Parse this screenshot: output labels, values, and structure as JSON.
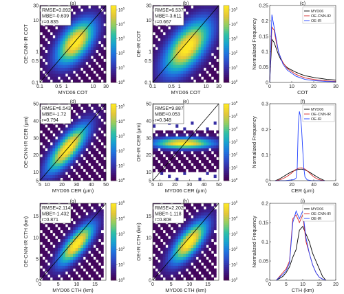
{
  "colormap": [
    "#440154",
    "#3b1f8e",
    "#2f47c4",
    "#1f74e0",
    "#16a3d0",
    "#2fc0a6",
    "#8fce63",
    "#e2c63a",
    "#fde725"
  ],
  "colors": {
    "myd06": "#000000",
    "oe_cnn_ir": "#d62728",
    "oe_ir": "#1f3fff"
  },
  "chart_data": [
    {
      "type": "heatmap",
      "panel_label": "(a)",
      "xlabel": "MYD06 COT",
      "ylabel": "OE-CNN-IR COT",
      "log_axes": true,
      "xlim": [
        0.1,
        30
      ],
      "ylim": [
        0.1,
        30
      ],
      "xticks": [
        0.1,
        0.5,
        1,
        10,
        30
      ],
      "xtick_labels": [
        "0.1",
        "0.5",
        "1",
        "10",
        "30"
      ],
      "yticks": [
        0.1,
        0.5,
        1,
        10,
        30
      ],
      "ytick_labels": [
        "0.1",
        "0.5",
        "1",
        "10",
        "30"
      ],
      "stats": [
        "RMSE=3.892",
        "MBE=-0.639",
        "r=0.835"
      ],
      "colorbar": {
        "ticks": [
          "10^0",
          "10^1",
          "10^2",
          "10^3",
          "10^4",
          "10^5"
        ],
        "max_exp": 5.3
      },
      "one_to_one_line": true,
      "distribution": {
        "peak": [
          2.2,
          2.0
        ],
        "spread": 0.95,
        "along": 1.8,
        "max_exp": 5.3,
        "fill_min": 0.12
      }
    },
    {
      "type": "heatmap",
      "panel_label": "(b)",
      "xlabel": "MYD06 COT",
      "ylabel": "OE-IR COT",
      "log_axes": true,
      "xlim": [
        0.1,
        30
      ],
      "ylim": [
        0.1,
        30
      ],
      "xticks": [
        0.1,
        0.5,
        1,
        10,
        30
      ],
      "xtick_labels": [
        "0.1",
        "0.5",
        "1",
        "10",
        "30"
      ],
      "yticks": [
        0.1,
        0.5,
        1,
        10,
        30
      ],
      "ytick_labels": [
        "0.1",
        "0.5",
        "1",
        "10",
        "30"
      ],
      "stats": [
        "RMSE=6.537",
        "MBE=-3.611",
        "r=0.667"
      ],
      "colorbar": {
        "ticks": [
          "10^0",
          "10^1",
          "10^2",
          "10^3",
          "10^4",
          "10^5"
        ],
        "max_exp": 5.3
      },
      "one_to_one_line": true,
      "distribution": {
        "peak": [
          2.0,
          1.4
        ],
        "spread": 1.1,
        "along": 2.2,
        "max_exp": 5.3,
        "fill_min": 0.1
      }
    },
    {
      "type": "line",
      "panel_label": "(c)",
      "xlabel": "COT",
      "ylabel": "Normalized Frequency",
      "xlim": [
        0,
        30
      ],
      "ylim": [
        0,
        0.25
      ],
      "xticks": [
        0,
        10,
        20,
        30
      ],
      "yticks": [
        0,
        0.05,
        0.1,
        0.15,
        0.2,
        0.25
      ],
      "ytick_labels": [
        "0",
        "0.05",
        "0.1",
        "0.15",
        "0.2",
        "0.25"
      ],
      "legend_position": "top-right",
      "series": [
        {
          "name": "MYD06",
          "color_key": "myd06",
          "x": [
            0,
            1,
            2,
            3,
            4,
            5,
            6,
            7,
            8,
            10,
            12,
            14,
            16,
            18,
            20,
            22,
            24,
            26,
            28,
            30
          ],
          "values": [
            0.0,
            0.14,
            0.13,
            0.11,
            0.09,
            0.075,
            0.065,
            0.055,
            0.048,
            0.04,
            0.033,
            0.027,
            0.022,
            0.019,
            0.016,
            0.014,
            0.012,
            0.01,
            0.009,
            0.008
          ]
        },
        {
          "name": "OE-CNN-IR",
          "color_key": "oe_cnn_ir",
          "x": [
            0,
            1,
            2,
            3,
            4,
            5,
            6,
            7,
            8,
            10,
            12,
            14,
            16,
            18,
            20,
            22,
            24,
            26,
            28,
            30
          ],
          "values": [
            0.0,
            0.18,
            0.17,
            0.13,
            0.1,
            0.08,
            0.065,
            0.055,
            0.045,
            0.035,
            0.026,
            0.02,
            0.015,
            0.012,
            0.01,
            0.008,
            0.006,
            0.005,
            0.004,
            0.004
          ]
        },
        {
          "name": "OE-IR",
          "color_key": "oe_ir",
          "x": [
            0,
            1,
            2,
            3,
            4,
            5,
            6,
            7,
            8,
            10,
            12,
            14,
            16,
            18,
            20,
            22,
            24,
            26,
            28,
            30
          ],
          "values": [
            0.0,
            0.22,
            0.18,
            0.14,
            0.1,
            0.08,
            0.06,
            0.05,
            0.04,
            0.03,
            0.02,
            0.015,
            0.01,
            0.008,
            0.006,
            0.005,
            0.004,
            0.003,
            0.003,
            0.002
          ]
        }
      ]
    },
    {
      "type": "heatmap",
      "panel_label": "(d)",
      "xlabel": "MYD06 CER (μm)",
      "ylabel": "OE-CNN-IR CER (μm)",
      "log_axes": false,
      "xlim": [
        5,
        50
      ],
      "ylim": [
        5,
        50
      ],
      "xticks": [
        5,
        10,
        20,
        30,
        40,
        50
      ],
      "yticks": [
        5,
        10,
        20,
        30,
        40,
        50
      ],
      "stats": [
        "RMSE=6.543",
        "MBE=-1.72",
        "r=0.794"
      ],
      "colorbar": {
        "ticks": [
          "10^0",
          "10^1",
          "10^2",
          "10^3",
          "10^4",
          "10^5"
        ],
        "max_exp": 5.2
      },
      "one_to_one_line": true,
      "distribution": {
        "peak": [
          24,
          24
        ],
        "spread": 4.5,
        "along": 13,
        "max_exp": 5.2,
        "fill_min": 0.12
      }
    },
    {
      "type": "heatmap",
      "panel_label": "(e)",
      "xlabel": "MYD06 CER (μm)",
      "ylabel": "OE-IR CER (μm)",
      "log_axes": false,
      "xlim": [
        5,
        50
      ],
      "ylim": [
        5,
        50
      ],
      "xticks": [
        5,
        10,
        20,
        30,
        40,
        50
      ],
      "yticks": [
        5,
        10,
        20,
        30,
        40,
        50
      ],
      "stats": [
        "RMSE=9.887",
        "MBE=0.053",
        "r=0.348"
      ],
      "colorbar": {
        "ticks": [
          "10^0",
          "10^1",
          "10^2",
          "10^3",
          "10^4",
          "10^5",
          "10^6"
        ],
        "max_exp": 6.0
      },
      "one_to_one_line": true,
      "distribution": {
        "peak": [
          26,
          27
        ],
        "spread": 2.2,
        "along": 14,
        "max_exp": 6.0,
        "fill_min": 0.18,
        "horizontal": true,
        "ymin_band": 10,
        "ymax_band": 35
      }
    },
    {
      "type": "line",
      "panel_label": "(f)",
      "xlabel": "CER (μm)",
      "ylabel": "Normalized Frequency",
      "xlim": [
        0,
        60
      ],
      "ylim": [
        0,
        0.3
      ],
      "xticks": [
        0,
        20,
        40,
        60
      ],
      "yticks": [
        0,
        0.1,
        0.2,
        0.3
      ],
      "ytick_labels": [
        "0",
        "0.1",
        "0.2",
        "0.3"
      ],
      "legend_position": "top-right",
      "series": [
        {
          "name": "MYD06",
          "color_key": "myd06",
          "x": [
            5,
            8,
            11,
            14,
            17,
            20,
            23,
            26,
            29,
            32,
            35,
            38,
            41,
            44,
            47,
            50
          ],
          "values": [
            0.0,
            0.005,
            0.012,
            0.02,
            0.028,
            0.035,
            0.04,
            0.044,
            0.045,
            0.042,
            0.036,
            0.028,
            0.02,
            0.012,
            0.006,
            0.0
          ]
        },
        {
          "name": "OE-CNN-IR",
          "color_key": "oe_cnn_ir",
          "x": [
            5,
            8,
            11,
            14,
            17,
            20,
            23,
            26,
            29,
            32,
            35,
            38,
            41,
            44,
            47,
            50
          ],
          "values": [
            0.0,
            0.002,
            0.006,
            0.012,
            0.02,
            0.03,
            0.042,
            0.048,
            0.05,
            0.045,
            0.035,
            0.022,
            0.012,
            0.005,
            0.002,
            0.0
          ]
        },
        {
          "name": "OE-IR",
          "color_key": "oe_ir",
          "x": [
            5,
            14,
            18,
            22,
            24,
            25,
            26,
            27,
            28,
            29,
            30,
            31,
            32,
            34,
            38,
            50
          ],
          "values": [
            0.0,
            0.0,
            0.002,
            0.004,
            0.01,
            0.05,
            0.22,
            0.27,
            0.25,
            0.2,
            0.12,
            0.05,
            0.015,
            0.003,
            0.0,
            0.0
          ]
        }
      ]
    },
    {
      "type": "heatmap",
      "panel_label": "(g)",
      "xlabel": "MYD06 CTH (km)",
      "ylabel": "OE-CNN-IR CTH (km)",
      "log_axes": false,
      "xlim": [
        0,
        18
      ],
      "ylim": [
        0,
        18
      ],
      "xticks": [
        0,
        5,
        10,
        15
      ],
      "yticks": [
        0,
        5,
        10,
        15
      ],
      "stats": [
        "RMSE=2.114",
        "MBE=-1.432",
        "r=0.871"
      ],
      "colorbar": {
        "ticks": [
          "10^0",
          "10^1",
          "10^2",
          "10^3",
          "10^4",
          "10^5"
        ],
        "max_exp": 5.0
      },
      "one_to_one_line": true,
      "distribution": {
        "peak": [
          10,
          8.5
        ],
        "spread": 1.6,
        "along": 4.5,
        "max_exp": 5.0,
        "fill_min": 0.1,
        "xmax_cut": 17
      }
    },
    {
      "type": "heatmap",
      "panel_label": "(h)",
      "xlabel": "MYD06 CTH (km)",
      "ylabel": "OE-IR CTH (km)",
      "log_axes": false,
      "xlim": [
        0,
        18
      ],
      "ylim": [
        0,
        18
      ],
      "xticks": [
        0,
        5,
        10,
        15
      ],
      "yticks": [
        0,
        5,
        10,
        15
      ],
      "stats": [
        "RMSE=2.202",
        "MBE=-1.118",
        "r=0.808"
      ],
      "colorbar": {
        "ticks": [
          "10^0",
          "10^1",
          "10^2",
          "10^3",
          "10^4",
          "10^5"
        ],
        "max_exp": 5.0
      },
      "one_to_one_line": true,
      "distribution": {
        "peak": [
          10,
          9.0
        ],
        "spread": 1.8,
        "along": 4.5,
        "max_exp": 5.0,
        "fill_min": 0.1,
        "xmax_cut": 17
      }
    },
    {
      "type": "line",
      "panel_label": "(i)",
      "xlabel": "CTH (km)",
      "ylabel": "Normalized Frequency",
      "xlim": [
        0,
        20
      ],
      "ylim": [
        0,
        0.2
      ],
      "xticks": [
        0,
        5,
        10,
        15,
        20
      ],
      "yticks": [
        0,
        0.05,
        0.1,
        0.15,
        0.2
      ],
      "ytick_labels": [
        "0",
        "0.05",
        "0.1",
        "0.15",
        "0.2"
      ],
      "legend_position": "top-right",
      "series": [
        {
          "name": "MYD06",
          "color_key": "myd06",
          "x": [
            2,
            3,
            4,
            5,
            6,
            7,
            8,
            9,
            10,
            11,
            12,
            13,
            14,
            15,
            16,
            17
          ],
          "values": [
            0.0,
            0.005,
            0.01,
            0.02,
            0.035,
            0.06,
            0.08,
            0.13,
            0.14,
            0.12,
            0.1,
            0.07,
            0.05,
            0.03,
            0.01,
            0.0
          ]
        },
        {
          "name": "OE-CNN-IR",
          "color_key": "oe_cnn_ir",
          "x": [
            2,
            3,
            4,
            5,
            6,
            7,
            8,
            9,
            10,
            11,
            12,
            13,
            14,
            15,
            16,
            17
          ],
          "values": [
            0.0,
            0.01,
            0.02,
            0.03,
            0.05,
            0.16,
            0.17,
            0.15,
            0.17,
            0.1,
            0.07,
            0.04,
            0.02,
            0.008,
            0.003,
            0.0
          ]
        },
        {
          "name": "OE-IR",
          "color_key": "oe_ir",
          "x": [
            2,
            3,
            4,
            5,
            6,
            7,
            8,
            9,
            10,
            11,
            12,
            13,
            14,
            15,
            16,
            17
          ],
          "values": [
            0.0,
            0.008,
            0.015,
            0.025,
            0.045,
            0.15,
            0.18,
            0.16,
            0.18,
            0.11,
            0.07,
            0.04,
            0.02,
            0.008,
            0.003,
            0.0
          ]
        }
      ]
    }
  ]
}
